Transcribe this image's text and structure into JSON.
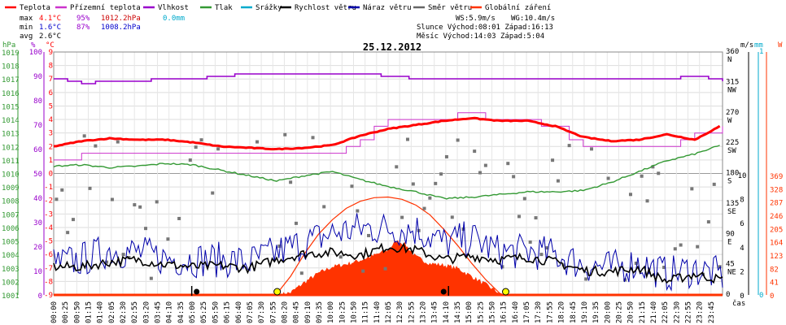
{
  "chart_data": {
    "type": "line",
    "title": "25.12.2012",
    "xlabel": "čas",
    "legend": [
      {
        "key": "teplota",
        "label": "Teplota",
        "color": "#ff0000"
      },
      {
        "key": "pocitova",
        "label": "Přízemní teplota",
        "color": "#cc33cc"
      },
      {
        "key": "vlhkost",
        "label": "Vlhkost",
        "color": "#9900cc"
      },
      {
        "key": "tlak",
        "label": "Tlak",
        "color": "#339933"
      },
      {
        "key": "srazky",
        "label": "Srážky",
        "color": "#00aacc"
      },
      {
        "key": "rychlost",
        "label": "Rychlost větru",
        "color": "#000000"
      },
      {
        "key": "naraz",
        "label": "Náraz větru",
        "color": "#0000aa"
      },
      {
        "key": "smer",
        "label": "Směr větru",
        "color": "#666666"
      },
      {
        "key": "zareni",
        "label": "Globální záření",
        "color": "#ff3300"
      }
    ],
    "stats": {
      "max": {
        "label": "max",
        "temp": "4.1°C",
        "hum": "95%",
        "press": "1012.2hPa",
        "rain": "0.0mm"
      },
      "min": {
        "label": "min",
        "temp": "1.6°C",
        "hum": "87%",
        "press": "1008.2hPa"
      },
      "avg": {
        "label": "avg",
        "temp": "2.6°C"
      }
    },
    "info": {
      "wind": "WS:5.9m/s",
      "gust": "WG:10.4m/s",
      "sun": "Slunce Východ:08:01  Západ:16:13",
      "moon": "Měsíc  Východ:14:03  Západ:5:04"
    },
    "axes": {
      "hpa": {
        "label": "hPa",
        "ticks": [
          "1019",
          "1018",
          "1017",
          "1016",
          "1015",
          "1014",
          "1013",
          "1012",
          "1011",
          "1010",
          "1009",
          "1008",
          "1007",
          "1006",
          "1005",
          "1004",
          "1003",
          "1002",
          "1001"
        ]
      },
      "hum": {
        "label": "%",
        "ticks": [
          "100",
          "90",
          "80",
          "70",
          "60",
          "50",
          "40",
          "30",
          "20",
          "10",
          "0"
        ]
      },
      "temp": {
        "label": "°C",
        "ticks": [
          "9",
          "8",
          "7",
          "6",
          "5",
          "4",
          "3",
          "2",
          "1",
          "0",
          "-1",
          "-2",
          "-3",
          "-4",
          "-5",
          "-6",
          "-7",
          "-8",
          "-9"
        ]
      },
      "ms": {
        "label": "m/s",
        "ticks": [
          "10",
          "8",
          "6",
          "4",
          "2",
          "0"
        ]
      },
      "mm": {
        "label": "mm",
        "ticks": [
          "1",
          "0"
        ]
      },
      "w": {
        "label": "W",
        "ticks": [
          "369",
          "328",
          "287",
          "246",
          "205",
          "164",
          "123",
          "82",
          "41",
          "0"
        ]
      },
      "dir": {
        "ticks": [
          {
            "deg": "360",
            "dir": "N"
          },
          {
            "deg": "315",
            "dir": "NW"
          },
          {
            "deg": "270",
            "dir": "W"
          },
          {
            "deg": "225",
            "dir": "SW"
          },
          {
            "deg": "180",
            "dir": "S"
          },
          {
            "deg": "135",
            "dir": "SE"
          },
          {
            "deg": "90",
            "dir": "E"
          },
          {
            "deg": "45",
            "dir": "NE"
          },
          {
            "deg": "0",
            "dir": ""
          }
        ]
      }
    },
    "time_labels": [
      "00:00",
      "00:25",
      "00:50",
      "01:15",
      "01:40",
      "02:05",
      "02:30",
      "02:55",
      "03:20",
      "03:45",
      "04:10",
      "04:35",
      "05:00",
      "05:25",
      "05:50",
      "06:15",
      "06:40",
      "07:05",
      "07:30",
      "07:55",
      "08:20",
      "08:45",
      "09:10",
      "09:35",
      "10:00",
      "10:25",
      "10:50",
      "11:15",
      "11:40",
      "12:05",
      "12:30",
      "12:55",
      "13:20",
      "13:45",
      "14:10",
      "14:35",
      "15:00",
      "15:25",
      "15:50",
      "16:15",
      "16:40",
      "17:05",
      "17:30",
      "17:55",
      "18:20",
      "18:45",
      "19:10",
      "19:35",
      "20:00",
      "20:25",
      "20:50",
      "21:15",
      "21:40",
      "22:05",
      "22:30",
      "22:55",
      "23:20",
      "23:45"
    ],
    "series": {
      "teplota": {
        "name": "Teplota",
        "x": [
          0,
          1,
          2,
          3,
          4,
          5,
          6,
          7,
          8,
          9,
          10,
          11,
          12,
          13,
          14,
          15,
          16,
          17,
          18,
          19,
          20,
          21,
          22,
          23,
          24
        ],
        "values": [
          2.0,
          2.4,
          2.6,
          2.5,
          2.5,
          2.3,
          2.0,
          1.9,
          1.8,
          1.9,
          2.1,
          2.8,
          3.3,
          3.6,
          3.9,
          4.1,
          3.9,
          3.9,
          3.5,
          2.7,
          2.4,
          2.5,
          2.9,
          2.5,
          3.6
        ]
      },
      "pocitova": {
        "name": "Přízemní teplota",
        "x": [
          0,
          1,
          2,
          3,
          4,
          5,
          6,
          7,
          8,
          9,
          10,
          11,
          12,
          13,
          14,
          15,
          16,
          17,
          18,
          19,
          20,
          21,
          22,
          23,
          24
        ],
        "values": [
          0.8,
          1.3,
          1.3,
          1.3,
          1.3,
          1.3,
          1.3,
          1.3,
          1.3,
          1.3,
          1.7,
          2.7,
          3.9,
          4.2,
          4.2,
          4.3,
          3.9,
          3.9,
          3.3,
          2.1,
          2.1,
          2.1,
          2.1,
          2.8,
          3.3
        ]
      },
      "vlhkost": {
        "name": "Vlhkost",
        "x": [
          0,
          1,
          2,
          3,
          4,
          5,
          6,
          7,
          8,
          9,
          10,
          11,
          12,
          13,
          14,
          15,
          16,
          17,
          18,
          19,
          20,
          21,
          22,
          23,
          24
        ],
        "values": [
          89,
          87,
          88,
          88,
          89,
          89,
          90,
          91,
          91,
          91,
          91,
          91,
          90,
          89,
          89,
          89,
          89,
          89,
          89,
          89,
          89,
          89,
          89,
          90,
          88
        ]
      },
      "tlak": {
        "name": "Tlak",
        "x": [
          0,
          1,
          2,
          3,
          4,
          5,
          6,
          7,
          8,
          9,
          10,
          11,
          12,
          13,
          14,
          15,
          16,
          17,
          18,
          19,
          20,
          21,
          22,
          23,
          24
        ],
        "values": [
          1010.6,
          1010.7,
          1010.5,
          1010.6,
          1010.8,
          1010.7,
          1010.3,
          1009.9,
          1009.5,
          1009.9,
          1010.2,
          1009.6,
          1009.1,
          1008.7,
          1008.2,
          1008.3,
          1008.5,
          1008.7,
          1008.7,
          1008.8,
          1009.4,
          1010.2,
          1011.0,
          1011.5,
          1012.2
        ]
      },
      "rychlost": {
        "name": "Rychlost větru",
        "x": [
          0,
          1,
          2,
          3,
          4,
          5,
          6,
          7,
          8,
          9,
          10,
          11,
          12,
          13,
          14,
          15,
          16,
          17,
          18,
          19,
          20,
          21,
          22,
          23,
          24
        ],
        "values": [
          2.4,
          2.4,
          2.8,
          3.0,
          2.6,
          2.4,
          2.5,
          2.3,
          3.0,
          3.5,
          3.6,
          3.4,
          4.1,
          3.8,
          3.0,
          3.3,
          3.0,
          3.2,
          2.8,
          2.1,
          2.0,
          2.3,
          1.2,
          1.8,
          1.3
        ]
      },
      "naraz_base": {
        "name": "Náraz větru",
        "x": [
          0,
          1,
          2,
          3,
          4,
          5,
          6,
          7,
          8,
          9,
          10,
          11,
          12,
          13,
          14,
          15,
          16,
          17,
          18,
          19,
          20,
          21,
          22,
          23,
          24
        ],
        "values": [
          2.6,
          3.0,
          3.8,
          3.6,
          3.1,
          3.0,
          3.0,
          2.8,
          3.6,
          4.4,
          5.2,
          5.6,
          5.6,
          5.5,
          4.4,
          4.8,
          3.6,
          3.7,
          3.4,
          2.6,
          2.3,
          2.7,
          1.8,
          2.2,
          1.7
        ]
      },
      "zareni": {
        "name": "Globální záření",
        "x": [
          0,
          7.9,
          8.5,
          9.0,
          9.5,
          10,
          10.5,
          11,
          11.5,
          12,
          12.3,
          12.6,
          13,
          13.5,
          14,
          14.5,
          15,
          15.5,
          16.0,
          16.2,
          24
        ],
        "values": [
          0,
          0,
          10,
          42,
          70,
          90,
          98,
          110,
          125,
          142,
          170,
          160,
          120,
          100,
          95,
          85,
          60,
          35,
          8,
          0,
          0
        ]
      },
      "zareni_teor": {
        "name": "teor",
        "x": [
          7.95,
          8.5,
          9,
          9.5,
          10,
          10.5,
          11,
          11.5,
          12,
          12.5,
          13,
          13.5,
          14,
          14.5,
          15,
          15.5,
          16,
          16.2
        ],
        "values": [
          0,
          60,
          130,
          190,
          235,
          270,
          292,
          303,
          305,
          298,
          280,
          250,
          205,
          155,
          100,
          50,
          8,
          0
        ]
      }
    }
  }
}
